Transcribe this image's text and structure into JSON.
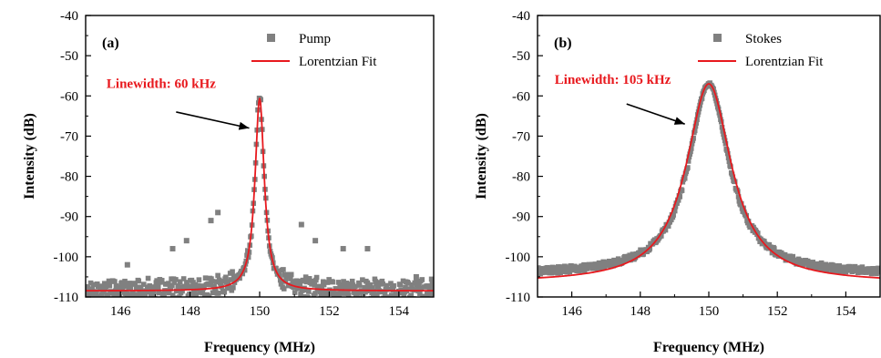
{
  "chart_data": [
    {
      "type": "scatter",
      "panel_label": "(a)",
      "xlabel": "Frequency (MHz)",
      "ylabel": "Intensity (dB)",
      "xlim": [
        145,
        155
      ],
      "ylim": [
        -110,
        -40
      ],
      "xticks": [
        146,
        148,
        150,
        152,
        154
      ],
      "yticks": [
        -110,
        -100,
        -90,
        -80,
        -70,
        -60,
        -50,
        -40
      ],
      "legend_position": "top-right",
      "series": [
        {
          "name": "Pump",
          "kind": "scatter",
          "color": "#808080",
          "model": {
            "center": 150.0,
            "hwhm": 0.16,
            "peak": -60.5,
            "floor": -108.5,
            "noise": 2.2
          },
          "outliers": [
            [
              147.5,
              -98
            ],
            [
              147.9,
              -96
            ],
            [
              148.6,
              -91
            ],
            [
              148.8,
              -89
            ],
            [
              151.2,
              -92
            ],
            [
              151.6,
              -96
            ],
            [
              152.4,
              -98
            ],
            [
              153.1,
              -98
            ],
            [
              154.5,
              -105
            ],
            [
              146.2,
              -102
            ]
          ]
        },
        {
          "name": "Lorentzian Fit",
          "kind": "line",
          "color": "#e8191e",
          "model": {
            "center": 150.0,
            "hwhm": 0.16,
            "peak": -60.5,
            "floor": -108.5
          }
        }
      ],
      "annotations": [
        {
          "text": "Linewidth: 60 kHz",
          "color": "#e8191e",
          "text_at": [
            145.6,
            -58
          ],
          "arrow_from": [
            147.6,
            -64
          ],
          "arrow_to": [
            149.7,
            -68
          ]
        }
      ]
    },
    {
      "type": "scatter",
      "panel_label": "(b)",
      "xlabel": "Frequency (MHz)",
      "ylabel": "Intensity (dB)",
      "xlim": [
        145,
        155
      ],
      "ylim": [
        -110,
        -40
      ],
      "xticks": [
        146,
        148,
        150,
        152,
        154
      ],
      "yticks": [
        -110,
        -100,
        -90,
        -80,
        -70,
        -60,
        -50,
        -40
      ],
      "legend_position": "top-right",
      "series": [
        {
          "name": "Stokes",
          "kind": "scatter",
          "color": "#808080",
          "model": {
            "center": 150.0,
            "hwhm": 0.72,
            "peak": -57.0,
            "floor": -104.5,
            "noise": 0.8
          },
          "outliers": []
        },
        {
          "name": "Lorentzian Fit",
          "kind": "line",
          "color": "#e8191e",
          "model": {
            "center": 150.0,
            "hwhm": 0.8,
            "peak": -57.0,
            "floor": -106.5
          }
        }
      ],
      "annotations": [
        {
          "text": "Linewidth: 105 kHz",
          "color": "#e8191e",
          "text_at": [
            145.5,
            -57
          ],
          "arrow_from": [
            147.6,
            -62
          ],
          "arrow_to": [
            149.3,
            -67
          ]
        }
      ]
    }
  ]
}
